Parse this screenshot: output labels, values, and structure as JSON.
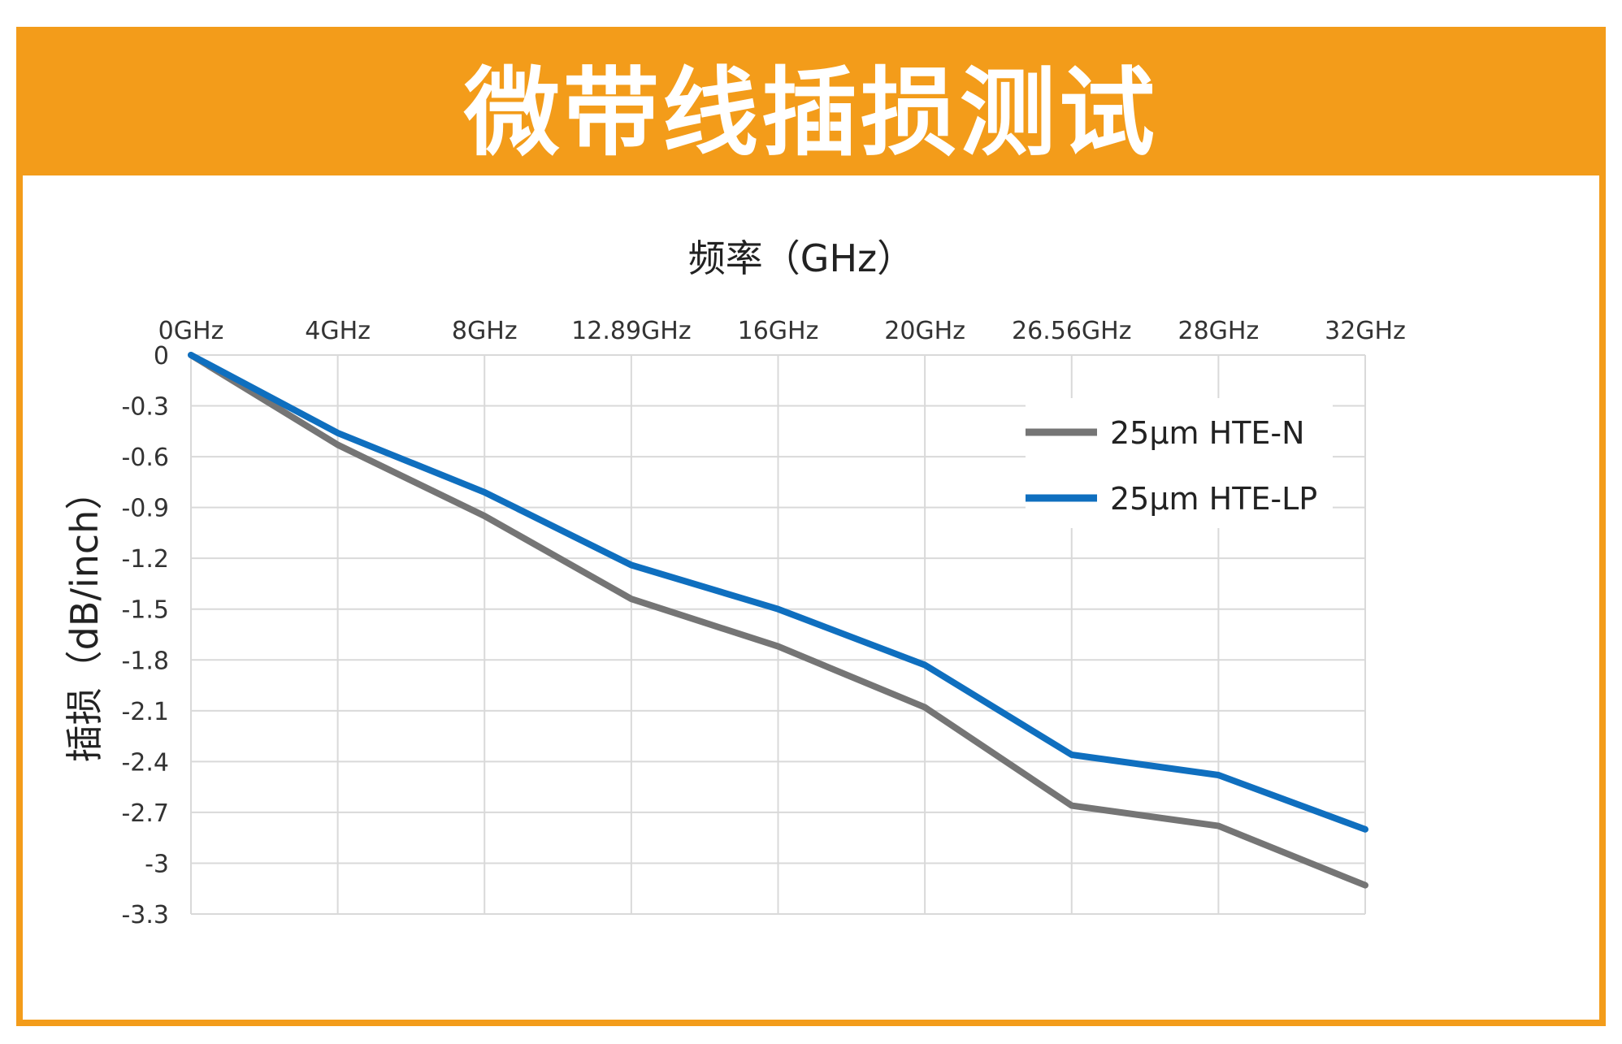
{
  "header": {
    "title": "微带线插损测试"
  },
  "colors": {
    "accent": "#f39c1a",
    "series_n": "#757575",
    "series_lp": "#0f6fbf",
    "grid": "#d9d9d9"
  },
  "chart_data": {
    "type": "line",
    "title": "",
    "xlabel": "频率（GHz）",
    "ylabel": "插损（dB/inch）",
    "x_axis_position": "top",
    "categories": [
      "0GHz",
      "4GHz",
      "8GHz",
      "12.89GHz",
      "16GHz",
      "20GHz",
      "26.56GHz",
      "28GHz",
      "32GHz"
    ],
    "y_ticks": [
      "0",
      "-0.3",
      "-0.6",
      "-0.9",
      "-1.2",
      "-1.5",
      "-1.8",
      "-2.1",
      "-2.4",
      "-2.7",
      "-3",
      "-3.3"
    ],
    "ylim": [
      -3.3,
      0
    ],
    "grid": true,
    "legend_position": "top-right",
    "series": [
      {
        "name": "25μm HTE-N",
        "color": "#757575",
        "values": [
          0,
          -0.53,
          -0.95,
          -1.44,
          -1.72,
          -2.08,
          -2.66,
          -2.78,
          -3.13
        ]
      },
      {
        "name": "25μm HTE-LP",
        "color": "#0f6fbf",
        "values": [
          0,
          -0.46,
          -0.81,
          -1.24,
          -1.5,
          -1.83,
          -2.36,
          -2.48,
          -2.8
        ]
      }
    ]
  }
}
